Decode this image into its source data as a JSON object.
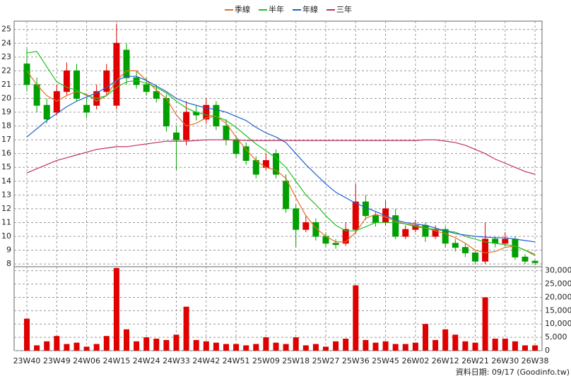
{
  "chart_data": {
    "type": "candlestick",
    "categories": [
      "23W40",
      null,
      null,
      "23W49",
      null,
      null,
      "24W06",
      null,
      null,
      "24W15",
      null,
      null,
      "24W24",
      null,
      null,
      "24W33",
      null,
      null,
      "24W42",
      null,
      null,
      "24W51",
      null,
      null,
      "25W09",
      null,
      null,
      "25W18",
      null,
      null,
      "25W27",
      null,
      null,
      "25W36",
      null,
      null,
      "25W45",
      null,
      null,
      "26W02",
      null,
      null,
      "26W12",
      null,
      null,
      "26W21",
      null,
      null,
      "26W30",
      null,
      null,
      "26W38"
    ],
    "open": [
      22.5,
      21,
      19.5,
      19,
      20.5,
      22,
      19.5,
      19.5,
      20.5,
      19.5,
      23.5,
      21.5,
      21,
      20.5,
      20,
      17.5,
      17,
      19,
      18.5,
      19.5,
      18,
      17,
      16.5,
      15.5,
      15,
      16,
      14,
      12,
      10.5,
      11,
      10,
      9.5,
      9.5,
      10.5,
      12.5,
      11.5,
      11,
      11.5,
      10,
      10.5,
      10.8,
      10,
      10.5,
      9.5,
      9.2,
      8.8,
      8.2,
      9.8,
      9.5,
      9.8,
      8.5,
      8.2
    ],
    "high": [
      23.6,
      21.5,
      20,
      21,
      22.6,
      22.5,
      20,
      21,
      22.5,
      25.4,
      24,
      22,
      21.5,
      21,
      20.3,
      18,
      19.8,
      19.5,
      20,
      19.8,
      18.5,
      17.3,
      16.8,
      15.8,
      16,
      16.3,
      14.5,
      12.3,
      11.5,
      11.3,
      10.3,
      9.8,
      11,
      13.8,
      13,
      11.8,
      12.6,
      12,
      10.8,
      11.2,
      11,
      10.8,
      10.7,
      9.8,
      9.5,
      8.9,
      11,
      10,
      10.3,
      10,
      8.7,
      8.3
    ],
    "low": [
      20.5,
      19,
      18.2,
      18.8,
      20.2,
      19.8,
      18.6,
      19.2,
      20.2,
      19.2,
      21,
      20.7,
      20.2,
      19.7,
      17.6,
      14.8,
      16.6,
      18.4,
      18.2,
      17.7,
      16.6,
      15.7,
      15.2,
      14.2,
      14.8,
      14.2,
      11.7,
      9.2,
      10.3,
      9.7,
      9.2,
      9.1,
      9.3,
      10.2,
      11.2,
      10.7,
      10.8,
      9.8,
      9.8,
      10.3,
      9.6,
      9.8,
      9.2,
      8.9,
      8.5,
      8,
      8,
      9.2,
      9.3,
      8.3,
      8,
      7.9
    ],
    "close": [
      21,
      19.5,
      18.5,
      20.5,
      22,
      20,
      19,
      20.5,
      22,
      24,
      21.5,
      21,
      20.5,
      20,
      18,
      17,
      19,
      18.8,
      19.5,
      18,
      17,
      16,
      15.5,
      14.5,
      15.5,
      14.5,
      12,
      10.5,
      11,
      10,
      9.5,
      9.4,
      10.5,
      12.5,
      11.5,
      11,
      12,
      10,
      10.5,
      10.8,
      10,
      10.5,
      9.5,
      9.2,
      8.8,
      8.2,
      9.8,
      9.5,
      9.8,
      8.5,
      8.2,
      8.1
    ],
    "up_color": "#e00000",
    "down_color": "#00a000",
    "series": [
      {
        "name": "季線",
        "color": "#e07020",
        "values": [
          22,
          21,
          20.2,
          19.8,
          20.2,
          20.5,
          20.3,
          19.8,
          20.2,
          21.3,
          22,
          22,
          21.3,
          20.6,
          20,
          18.8,
          18,
          18.2,
          18.6,
          18.7,
          18.2,
          17.2,
          16.3,
          15.5,
          15,
          14.8,
          14.2,
          12.8,
          11.5,
          10.6,
          10,
          9.6,
          9.6,
          10.3,
          11.3,
          11.6,
          11.4,
          11.1,
          10.9,
          10.8,
          10.6,
          10.4,
          10.2,
          9.9,
          9.5,
          9,
          8.8,
          8.9,
          9.2,
          9.3,
          9,
          8.6
        ]
      },
      {
        "name": "半年",
        "color": "#20c020",
        "values": [
          23.3,
          23.4,
          22.3,
          21.2,
          20.8,
          20.6,
          20.2,
          20,
          20.2,
          20.8,
          21.2,
          21.3,
          21.1,
          20.8,
          20.4,
          19.8,
          19.3,
          19,
          18.8,
          18.7,
          18.4,
          17.9,
          17.3,
          16.7,
          16.2,
          15.7,
          15,
          14,
          13,
          12.3,
          11.5,
          10.8,
          10.4,
          10.4,
          10.7,
          11,
          11,
          11,
          10.9,
          10.7,
          10.6,
          10.5,
          10.4,
          10.3,
          10,
          9.8,
          9.6,
          9.5,
          9.4,
          9.3,
          9,
          8.7
        ]
      },
      {
        "name": "年線",
        "color": "#2060d0",
        "values": [
          17.2,
          17.8,
          18.4,
          18.9,
          19.4,
          19.8,
          20.1,
          20.4,
          20.8,
          21.3,
          21.6,
          21.6,
          21.3,
          20.9,
          20.5,
          20,
          19.7,
          19.5,
          19.3,
          19.2,
          19,
          18.7,
          18.4,
          17.9,
          17.5,
          17.2,
          16.8,
          16,
          15.2,
          14.5,
          13.8,
          13.2,
          12.8,
          12.4,
          12.1,
          11.8,
          11.5,
          11.2,
          11,
          10.9,
          10.8,
          10.6,
          10.4,
          10.2,
          10.1,
          10,
          9.95,
          9.9,
          9.9,
          9.8,
          9.7,
          9.6
        ]
      },
      {
        "name": "三年",
        "color": "#c03060",
        "values": [
          14.6,
          14.9,
          15.2,
          15.5,
          15.7,
          15.9,
          16.1,
          16.3,
          16.4,
          16.5,
          16.5,
          16.6,
          16.7,
          16.8,
          16.9,
          16.9,
          16.9,
          16.95,
          17,
          17,
          17,
          17,
          16.95,
          16.95,
          16.95,
          16.95,
          16.95,
          16.95,
          16.95,
          16.95,
          16.95,
          16.95,
          16.95,
          16.95,
          16.95,
          16.95,
          16.95,
          16.95,
          16.95,
          16.95,
          17,
          17,
          16.9,
          16.8,
          16.6,
          16.3,
          16,
          15.6,
          15.3,
          15,
          14.7,
          14.5
        ]
      }
    ],
    "ylim": [
      7.8,
      25.6
    ],
    "yticks": [
      8,
      9,
      10,
      11,
      12,
      13,
      14,
      15,
      16,
      17,
      18,
      19,
      20,
      21,
      22,
      23,
      24,
      25
    ],
    "grid": true,
    "volume": {
      "color": "#e00000",
      "values": [
        12000,
        2000,
        3500,
        5500,
        2500,
        3000,
        1500,
        2500,
        5500,
        31000,
        8000,
        3500,
        5000,
        4500,
        4000,
        6000,
        16500,
        4000,
        3500,
        3000,
        2500,
        2500,
        2000,
        2500,
        5000,
        3000,
        2500,
        5000,
        2000,
        2500,
        1500,
        3500,
        4500,
        24500,
        4000,
        3000,
        3500,
        2500,
        2500,
        3000,
        10000,
        4000,
        8000,
        6000,
        3500,
        3000,
        20000,
        4500,
        4500,
        3500,
        2000,
        2000
      ],
      "ylim": [
        0,
        31500
      ],
      "yticks": [
        0,
        {
          "value": 5000,
          "label": "5,000"
        },
        {
          "value": 10000,
          "label": "10,000"
        },
        {
          "value": 15000,
          "label": "15,000"
        },
        {
          "value": 20000,
          "label": "20,000"
        },
        {
          "value": 25000,
          "label": "25,000"
        },
        {
          "value": 30000,
          "label": "30,000"
        }
      ]
    },
    "footer": "資料日期: 09/17  (Goodinfo.tw)"
  }
}
